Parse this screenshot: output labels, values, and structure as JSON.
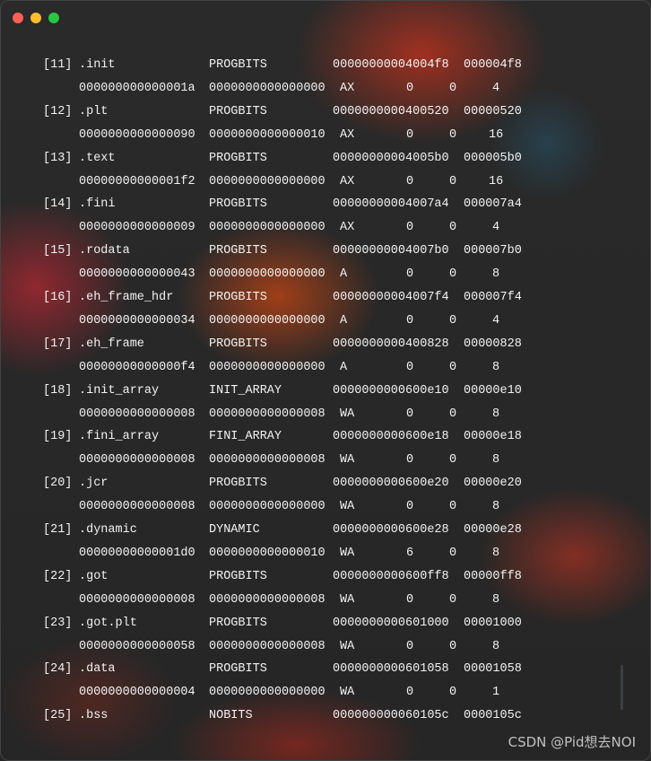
{
  "window": {
    "controls": {
      "close_color": "#ff5f57",
      "minimize_color": "#febc2e",
      "maximize_color": "#28c840"
    }
  },
  "sections": [
    {
      "index": "[11]",
      "name": ".init",
      "type": "PROGBITS",
      "address": "00000000004004f8",
      "offset": "000004f8",
      "size": "000000000000001a",
      "entsize": "0000000000000000",
      "flags": "AX",
      "link": "0",
      "info": "0",
      "align": "4"
    },
    {
      "index": "[12]",
      "name": ".plt",
      "type": "PROGBITS",
      "address": "0000000000400520",
      "offset": "00000520",
      "size": "0000000000000090",
      "entsize": "0000000000000010",
      "flags": "AX",
      "link": "0",
      "info": "0",
      "align": "16"
    },
    {
      "index": "[13]",
      "name": ".text",
      "type": "PROGBITS",
      "address": "00000000004005b0",
      "offset": "000005b0",
      "size": "00000000000001f2",
      "entsize": "0000000000000000",
      "flags": "AX",
      "link": "0",
      "info": "0",
      "align": "16"
    },
    {
      "index": "[14]",
      "name": ".fini",
      "type": "PROGBITS",
      "address": "00000000004007a4",
      "offset": "000007a4",
      "size": "0000000000000009",
      "entsize": "0000000000000000",
      "flags": "AX",
      "link": "0",
      "info": "0",
      "align": "4"
    },
    {
      "index": "[15]",
      "name": ".rodata",
      "type": "PROGBITS",
      "address": "00000000004007b0",
      "offset": "000007b0",
      "size": "0000000000000043",
      "entsize": "0000000000000000",
      "flags": "A",
      "link": "0",
      "info": "0",
      "align": "8"
    },
    {
      "index": "[16]",
      "name": ".eh_frame_hdr",
      "type": "PROGBITS",
      "address": "00000000004007f4",
      "offset": "000007f4",
      "size": "0000000000000034",
      "entsize": "0000000000000000",
      "flags": "A",
      "link": "0",
      "info": "0",
      "align": "4"
    },
    {
      "index": "[17]",
      "name": ".eh_frame",
      "type": "PROGBITS",
      "address": "0000000000400828",
      "offset": "00000828",
      "size": "00000000000000f4",
      "entsize": "0000000000000000",
      "flags": "A",
      "link": "0",
      "info": "0",
      "align": "8"
    },
    {
      "index": "[18]",
      "name": ".init_array",
      "type": "INIT_ARRAY",
      "address": "0000000000600e10",
      "offset": "00000e10",
      "size": "0000000000000008",
      "entsize": "0000000000000008",
      "flags": "WA",
      "link": "0",
      "info": "0",
      "align": "8"
    },
    {
      "index": "[19]",
      "name": ".fini_array",
      "type": "FINI_ARRAY",
      "address": "0000000000600e18",
      "offset": "00000e18",
      "size": "0000000000000008",
      "entsize": "0000000000000008",
      "flags": "WA",
      "link": "0",
      "info": "0",
      "align": "8"
    },
    {
      "index": "[20]",
      "name": ".jcr",
      "type": "PROGBITS",
      "address": "0000000000600e20",
      "offset": "00000e20",
      "size": "0000000000000008",
      "entsize": "0000000000000000",
      "flags": "WA",
      "link": "0",
      "info": "0",
      "align": "8"
    },
    {
      "index": "[21]",
      "name": ".dynamic",
      "type": "DYNAMIC",
      "address": "0000000000600e28",
      "offset": "00000e28",
      "size": "00000000000001d0",
      "entsize": "0000000000000010",
      "flags": "WA",
      "link": "6",
      "info": "0",
      "align": "8"
    },
    {
      "index": "[22]",
      "name": ".got",
      "type": "PROGBITS",
      "address": "0000000000600ff8",
      "offset": "00000ff8",
      "size": "0000000000000008",
      "entsize": "0000000000000008",
      "flags": "WA",
      "link": "0",
      "info": "0",
      "align": "8"
    },
    {
      "index": "[23]",
      "name": ".got.plt",
      "type": "PROGBITS",
      "address": "0000000000601000",
      "offset": "00001000",
      "size": "0000000000000058",
      "entsize": "0000000000000008",
      "flags": "WA",
      "link": "0",
      "info": "0",
      "align": "8"
    },
    {
      "index": "[24]",
      "name": ".data",
      "type": "PROGBITS",
      "address": "0000000000601058",
      "offset": "00001058",
      "size": "0000000000000004",
      "entsize": "0000000000000000",
      "flags": "WA",
      "link": "0",
      "info": "0",
      "align": "1"
    },
    {
      "index": "[25]",
      "name": ".bss",
      "type": "NOBITS",
      "address": "000000000060105c",
      "offset": "0000105c"
    }
  ],
  "watermark": "CSDN @Pid想去NOI"
}
